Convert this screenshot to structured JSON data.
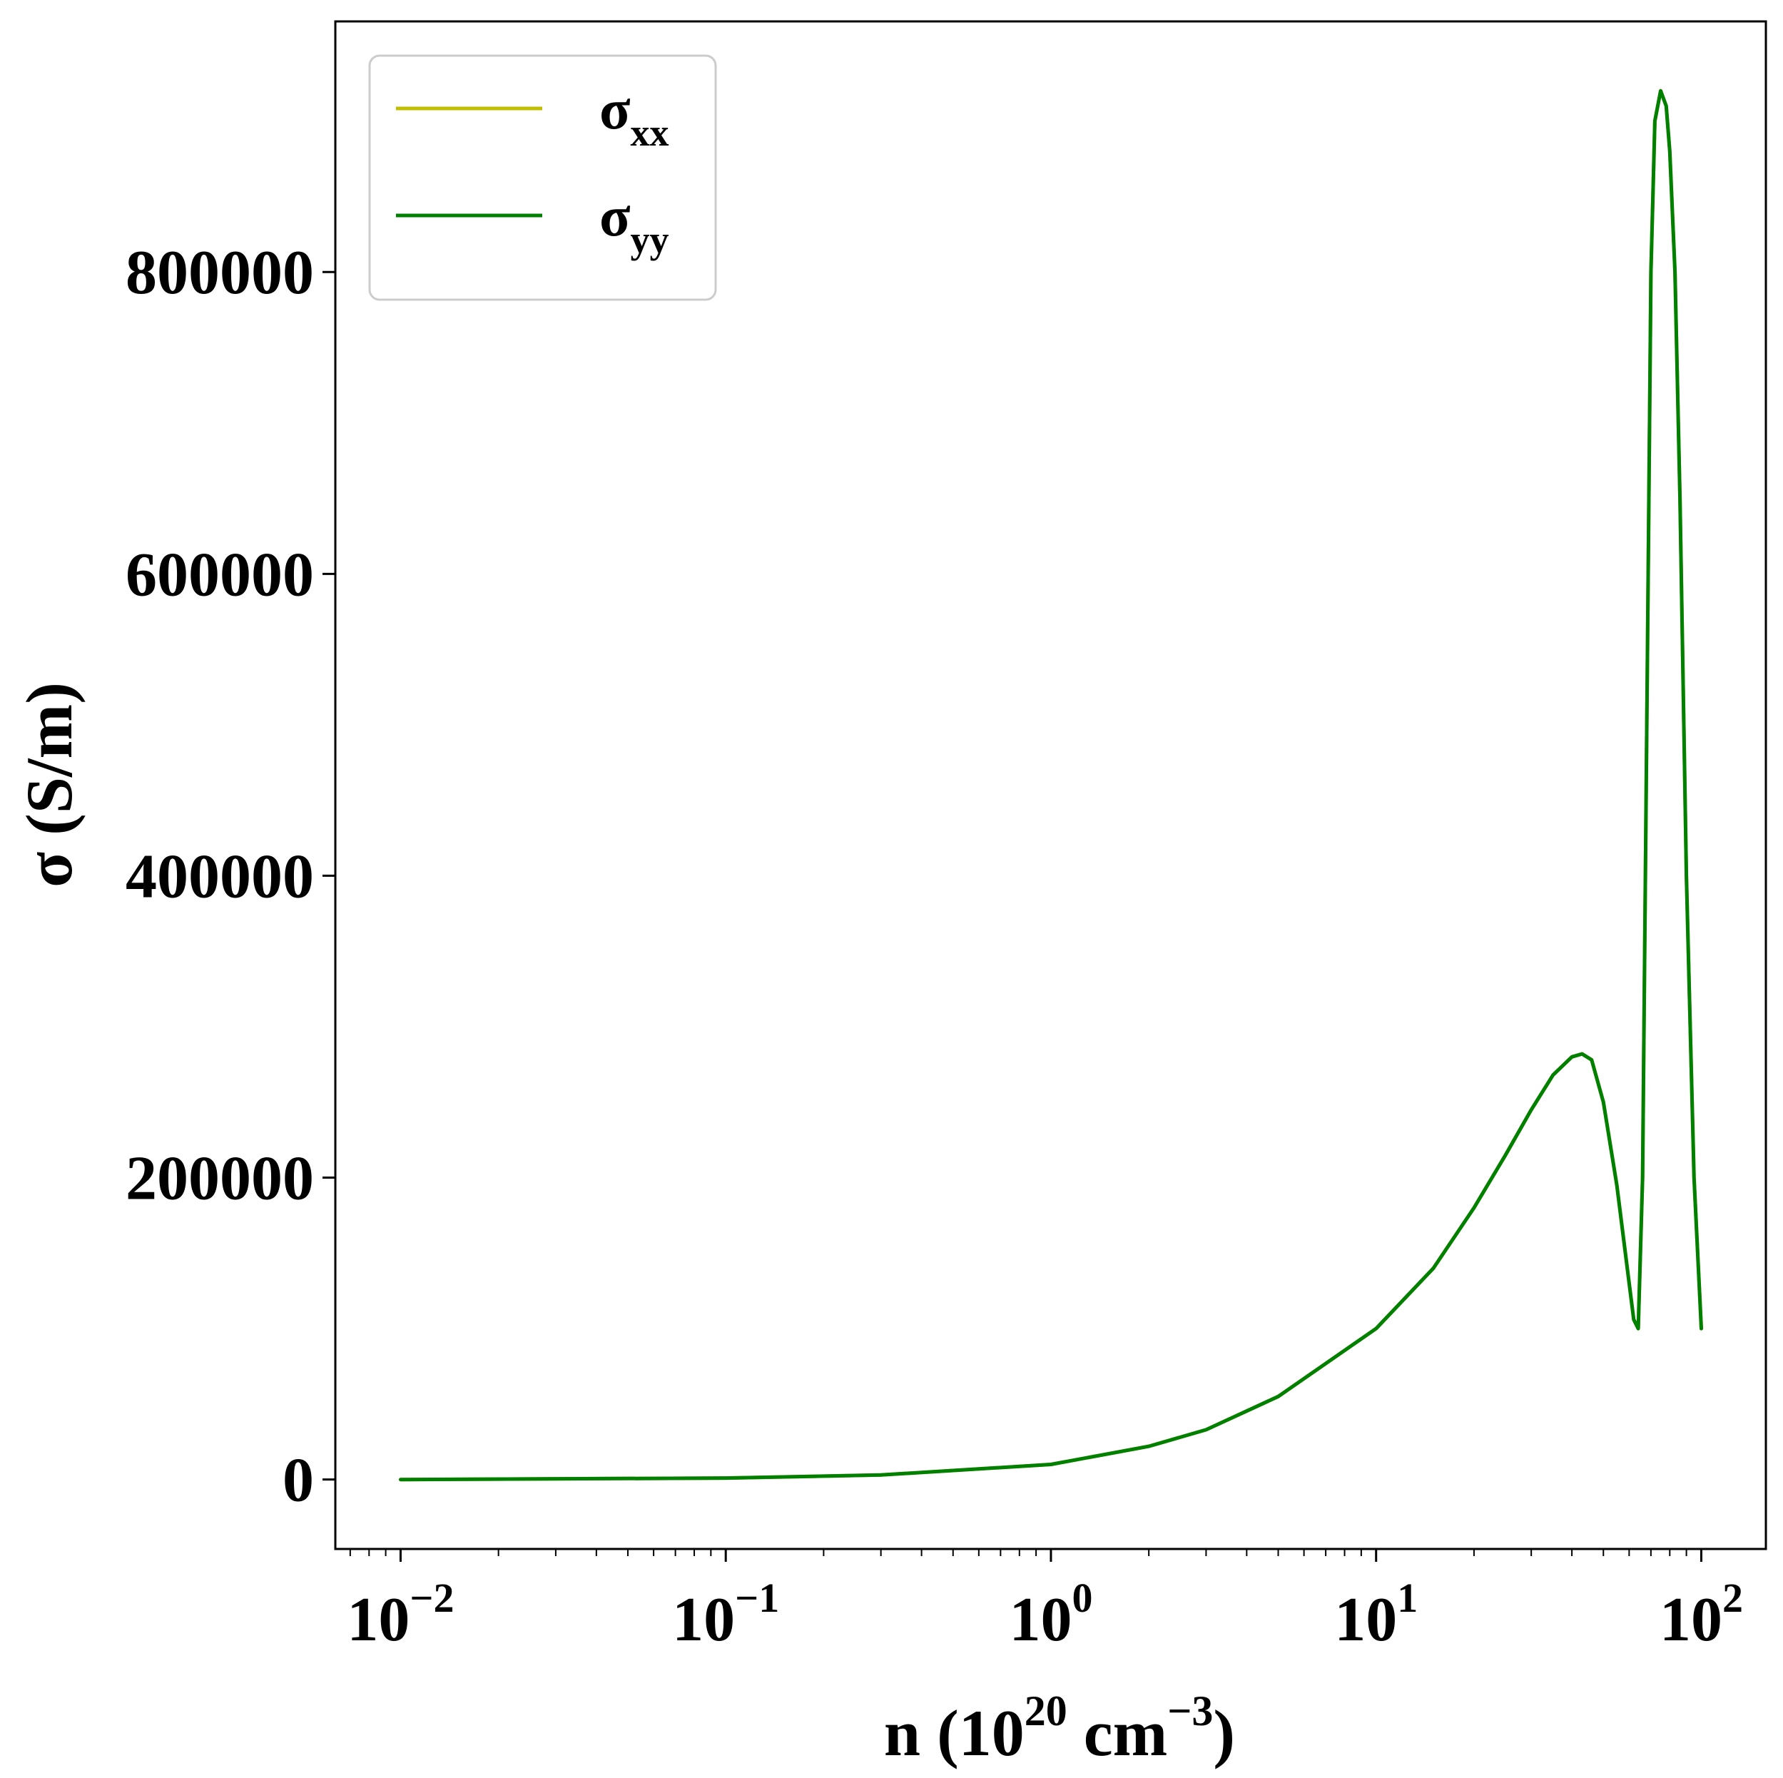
{
  "chart_data": {
    "type": "line",
    "xlabel": {
      "main": "n (10",
      "sup": "20",
      "middle": " cm",
      "sup2": "−3",
      "end": ")"
    },
    "ylabel": "σ (S/m)",
    "xscale": "log",
    "xlim": [
      0.0063,
      158
    ],
    "ylim": [
      -46000,
      966000
    ],
    "x_ticks": [
      {
        "value": 0.01,
        "base": "10",
        "exp": "−2"
      },
      {
        "value": 0.1,
        "base": "10",
        "exp": "−1"
      },
      {
        "value": 1,
        "base": "10",
        "exp": "0"
      },
      {
        "value": 10,
        "base": "10",
        "exp": "1"
      },
      {
        "value": 100,
        "base": "10",
        "exp": "2"
      }
    ],
    "y_ticks": [
      {
        "value": 0,
        "label": "0"
      },
      {
        "value": 200000,
        "label": "200000"
      },
      {
        "value": 400000,
        "label": "400000"
      },
      {
        "value": 600000,
        "label": "600000"
      },
      {
        "value": 800000,
        "label": "800000"
      }
    ],
    "grid": false,
    "legend_position": "top-left",
    "series": [
      {
        "name": "σ",
        "name_sub": "xx",
        "color": "#bfbf00",
        "x": [
          0.01,
          0.1,
          0.3,
          1,
          2,
          3,
          5,
          10,
          15,
          20,
          25,
          30,
          35,
          40,
          43,
          46,
          50,
          55,
          60,
          62,
          64,
          66,
          68,
          70,
          72,
          75,
          78,
          80,
          83,
          86,
          90,
          95,
          100
        ],
        "y": [
          0,
          1000,
          3000,
          10000,
          22000,
          33000,
          55000,
          100000,
          140000,
          180000,
          215000,
          245000,
          268000,
          280000,
          282000,
          278000,
          250000,
          195000,
          130000,
          106000,
          100000,
          200000,
          500000,
          800000,
          900000,
          920000,
          910000,
          880000,
          800000,
          650000,
          400000,
          200000,
          100000
        ]
      },
      {
        "name": "σ",
        "name_sub": "yy",
        "color": "#008000",
        "x": [
          0.01,
          0.1,
          0.3,
          1,
          2,
          3,
          5,
          10,
          15,
          20,
          25,
          30,
          35,
          40,
          43,
          46,
          50,
          55,
          60,
          62,
          64,
          66,
          68,
          70,
          72,
          75,
          78,
          80,
          83,
          86,
          90,
          95,
          100
        ],
        "y": [
          0,
          1000,
          3000,
          10000,
          22000,
          33000,
          55000,
          100000,
          140000,
          180000,
          215000,
          245000,
          268000,
          280000,
          282000,
          278000,
          250000,
          195000,
          130000,
          106000,
          100000,
          200000,
          500000,
          800000,
          900000,
          920000,
          910000,
          880000,
          800000,
          650000,
          400000,
          200000,
          100000
        ]
      }
    ]
  }
}
